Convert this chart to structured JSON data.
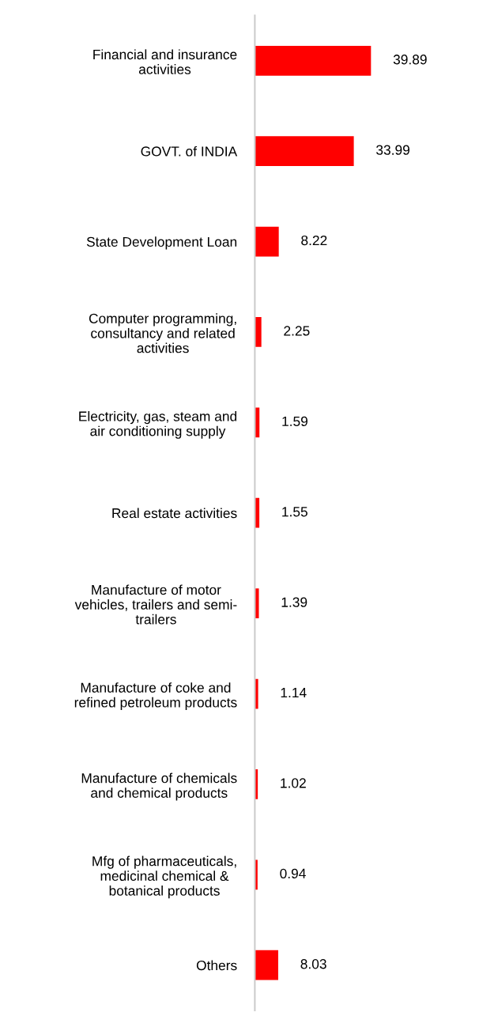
{
  "chart_data": {
    "type": "bar",
    "orientation": "horizontal",
    "categories": [
      "Financial and insurance\nactivities",
      "GOVT. of INDIA",
      "State Development Loan",
      "Computer programming,\nconsultancy and related\nactivities",
      "Electricity, gas, steam and\nair conditioning supply",
      "Real estate activities",
      "Manufacture of motor\nvehicles, trailers and semi-\ntrailers",
      "Manufacture of coke and\nrefined petroleum products",
      "Manufacture of chemicals\nand chemical products",
      "Mfg of pharmaceuticals,\nmedicinal chemical &\nbotanical products",
      "Others"
    ],
    "values": [
      39.89,
      33.99,
      8.22,
      2.25,
      1.59,
      1.55,
      1.39,
      1.14,
      1.02,
      0.94,
      8.03
    ],
    "color": "#ff0000",
    "data_labels": true,
    "grid": false,
    "legend": false
  }
}
